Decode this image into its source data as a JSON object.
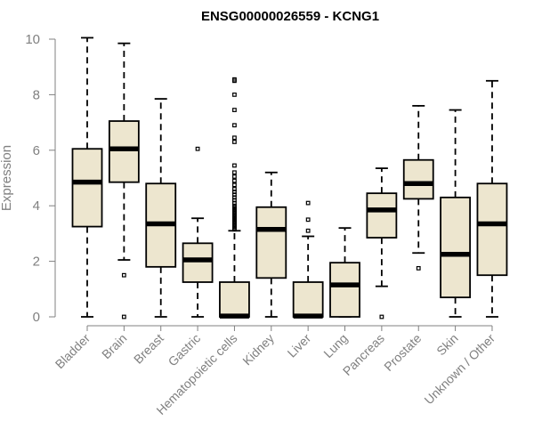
{
  "chart_data": {
    "type": "box",
    "title": "ENSG00000026559 - KCNG1",
    "ylabel": "Expression",
    "xlabel": "",
    "ylim": [
      0,
      10
    ],
    "yticks": [
      0,
      2,
      4,
      6,
      8,
      10
    ],
    "box_fill": "#ede6cf",
    "stroke_color": "#000000",
    "axis_color": "#808080",
    "categories": [
      "Bladder",
      "Brain",
      "Breast",
      "Gastric",
      "Hematopoietic cells",
      "Kidney",
      "Liver",
      "Lung",
      "Pancreas",
      "Prostate",
      "Skin",
      "Unknown / Other"
    ],
    "boxes": [
      {
        "name": "Bladder",
        "min": 0,
        "q1": 3.25,
        "median": 4.85,
        "q3": 6.05,
        "max": 10.05,
        "outliers": []
      },
      {
        "name": "Brain",
        "min": 2.05,
        "q1": 4.85,
        "median": 6.05,
        "q3": 7.05,
        "max": 9.85,
        "outliers": [
          1.5,
          0
        ]
      },
      {
        "name": "Breast",
        "min": 0,
        "q1": 1.8,
        "median": 3.35,
        "q3": 4.8,
        "max": 7.85,
        "outliers": []
      },
      {
        "name": "Gastric",
        "min": 0,
        "q1": 1.25,
        "median": 2.05,
        "q3": 2.65,
        "max": 3.55,
        "outliers": [
          6.05
        ]
      },
      {
        "name": "Hematopoietic cells",
        "min": 0,
        "q1": 0,
        "median": 0.03,
        "q3": 1.25,
        "max": 3.1,
        "outliers": [
          3.15,
          3.2,
          3.25,
          3.3,
          3.35,
          3.4,
          3.45,
          3.5,
          3.55,
          3.6,
          3.65,
          3.7,
          3.75,
          3.8,
          3.85,
          3.9,
          3.95,
          4.0,
          4.1,
          4.2,
          4.3,
          4.4,
          4.5,
          4.6,
          4.75,
          4.9,
          5.05,
          5.2,
          5.45,
          6.3,
          6.45,
          6.9,
          7.45,
          8.0,
          8.5,
          8.55
        ]
      },
      {
        "name": "Kidney",
        "min": 0,
        "q1": 1.4,
        "median": 3.15,
        "q3": 3.95,
        "max": 5.2,
        "outliers": []
      },
      {
        "name": "Liver",
        "min": 0,
        "q1": 0,
        "median": 0.03,
        "q3": 1.25,
        "max": 2.9,
        "outliers": [
          3.1,
          3.5,
          4.1
        ]
      },
      {
        "name": "Lung",
        "min": 0,
        "q1": 0,
        "median": 1.15,
        "q3": 1.95,
        "max": 3.2,
        "outliers": []
      },
      {
        "name": "Pancreas",
        "min": 1.1,
        "q1": 2.85,
        "median": 3.85,
        "q3": 4.45,
        "max": 5.35,
        "outliers": [
          0
        ]
      },
      {
        "name": "Prostate",
        "min": 2.3,
        "q1": 4.25,
        "median": 4.8,
        "q3": 5.65,
        "max": 7.6,
        "outliers": [
          1.75
        ]
      },
      {
        "name": "Skin",
        "min": 0,
        "q1": 0.7,
        "median": 2.25,
        "q3": 4.3,
        "max": 7.45,
        "outliers": []
      },
      {
        "name": "Unknown / Other",
        "min": 0,
        "q1": 1.5,
        "median": 3.35,
        "q3": 4.8,
        "max": 8.5,
        "outliers": []
      }
    ]
  }
}
